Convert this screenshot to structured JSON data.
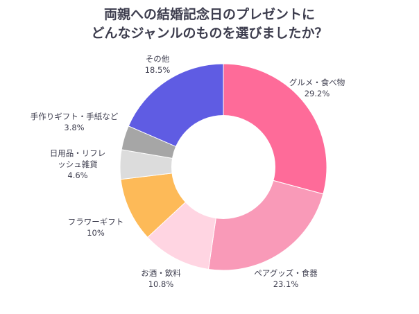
{
  "title_lines": [
    "両親への結婚記念日のプレゼントに",
    "どんなジャンルのものを選びましたか？"
  ],
  "chart_data": {
    "type": "pie",
    "style": "donut",
    "title": "両親への結婚記念日のプレゼントにどんなジャンルのものを選びましたか？",
    "slices": [
      {
        "name": "グルメ・食べ物",
        "label_lines": [
          "グルメ・食べ物"
        ],
        "value": 29.2,
        "display": "29.2%",
        "color": "#fe6b99"
      },
      {
        "name": "ペアグッズ・食器",
        "label_lines": [
          "ペアグッズ・食器"
        ],
        "value": 23.1,
        "display": "23.1%",
        "color": "#f99ab8"
      },
      {
        "name": "お酒・飲料",
        "label_lines": [
          "お酒・飲料"
        ],
        "value": 10.8,
        "display": "10.8%",
        "color": "#ffd5e2"
      },
      {
        "name": "フラワーギフト",
        "label_lines": [
          "フラワーギフト"
        ],
        "value": 10,
        "display": "10%",
        "color": "#fdba58"
      },
      {
        "name": "日用品・リフレッシュ雑貨",
        "label_lines": [
          "日用品・リフレ",
          "ッシュ雑貨"
        ],
        "value": 4.6,
        "display": "4.6%",
        "color": "#dcdcdc"
      },
      {
        "name": "手作りギフト・手紙など",
        "label_lines": [
          "手作りギフト・手紙など"
        ],
        "value": 3.8,
        "display": "3.8%",
        "color": "#a6a6a6"
      },
      {
        "name": "その他",
        "label_lines": [
          "その他"
        ],
        "value": 18.5,
        "display": "18.5%",
        "color": "#5f5ce3"
      }
    ],
    "legend": "none"
  }
}
